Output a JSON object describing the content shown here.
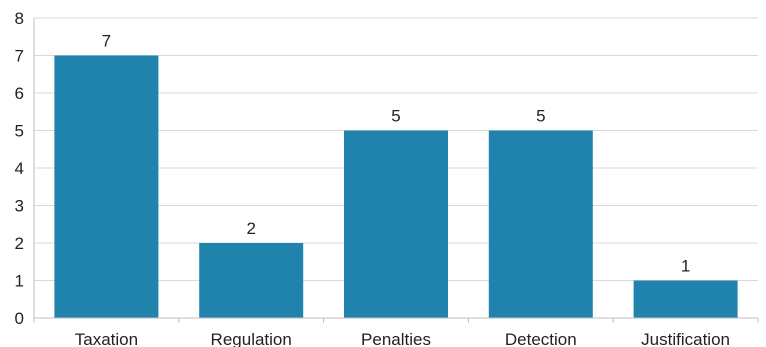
{
  "chart_data": {
    "type": "bar",
    "title": "",
    "xlabel": "",
    "ylabel": "",
    "categories": [
      "Taxation",
      "Regulation",
      "Penalties",
      "Detection",
      "Justification"
    ],
    "values": [
      7,
      2,
      5,
      5,
      1
    ],
    "data_labels": [
      "7",
      "2",
      "5",
      "5",
      "1"
    ],
    "ylim": [
      0,
      8
    ],
    "yticks": [
      "0",
      "1",
      "2",
      "3",
      "4",
      "5",
      "6",
      "7",
      "8"
    ],
    "grid": true,
    "legend": "none",
    "bar_color": "#1f83ad"
  }
}
